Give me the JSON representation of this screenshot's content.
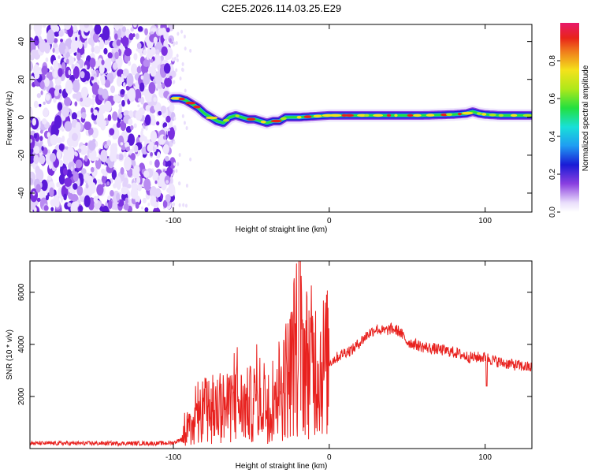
{
  "chart_data": [
    {
      "type": "heatmap",
      "title": "C2E5.2026.114.03.25.E29",
      "xlabel": "Height of straight line (km)",
      "ylabel": "Frequency (Hz)",
      "xlim": [
        -192,
        130
      ],
      "ylim": [
        -50,
        49
      ],
      "xticks": [
        -100,
        0,
        100
      ],
      "yticks": [
        -40,
        -20,
        0,
        20,
        40
      ],
      "noise_region_x": [
        -192,
        -100
      ],
      "ridge": {
        "x": [
          -100,
          -96,
          -92,
          -88,
          -84,
          -80,
          -76,
          -72,
          -68,
          -64,
          -60,
          -56,
          -52,
          -48,
          -44,
          -40,
          -36,
          -32,
          -28,
          -24,
          -20,
          -10,
          0,
          10,
          20,
          40,
          60,
          80,
          88,
          92,
          96,
          100,
          110,
          120,
          130
        ],
        "y": [
          10,
          10,
          9,
          7,
          5,
          2,
          0,
          -2,
          -3,
          0,
          1,
          0,
          -1,
          -1,
          -2,
          -3,
          -2,
          -2,
          0,
          0,
          0,
          0.5,
          1,
          1,
          1,
          1,
          1,
          1.5,
          2,
          3,
          2,
          1.5,
          1,
          1,
          1
        ]
      },
      "colorbar": {
        "label": "Normalized spectral amplitude",
        "range": [
          0,
          1
        ],
        "ticks": [
          "0.0",
          "0.2",
          "0.4",
          "0.6",
          "0.8"
        ]
      }
    },
    {
      "type": "line",
      "xlabel": "Height of straight line (km)",
      "ylabel": "SNR (10 * v/v)",
      "xlim": [
        -192,
        130
      ],
      "ylim": [
        0,
        7200
      ],
      "xticks": [
        -100,
        0,
        100
      ],
      "yticks": [
        2000,
        4000,
        6000
      ],
      "series": [
        {
          "name": "SNR",
          "color": "#e8211e",
          "x": [
            -192,
            -170,
            -150,
            -130,
            -110,
            -100,
            -95,
            -92,
            -88,
            -85,
            -80,
            -75,
            -70,
            -65,
            -60,
            -55,
            -50,
            -45,
            -40,
            -35,
            -30,
            -25,
            -22,
            -20,
            -15,
            -10,
            -5,
            0,
            5,
            10,
            15,
            20,
            25,
            30,
            35,
            40,
            45,
            50,
            60,
            70,
            80,
            90,
            100,
            110,
            120,
            130
          ],
          "values": [
            200,
            200,
            200,
            200,
            200,
            220,
            350,
            900,
            600,
            1000,
            1500,
            1300,
            1700,
            1500,
            1800,
            1600,
            1700,
            1900,
            1800,
            2000,
            2500,
            2900,
            3800,
            3900,
            3400,
            3300,
            3200,
            3300,
            3500,
            3700,
            3800,
            4100,
            4400,
            4600,
            4500,
            4600,
            4500,
            4100,
            3900,
            3800,
            3700,
            3500,
            3500,
            3300,
            3200,
            3100
          ]
        }
      ]
    }
  ]
}
